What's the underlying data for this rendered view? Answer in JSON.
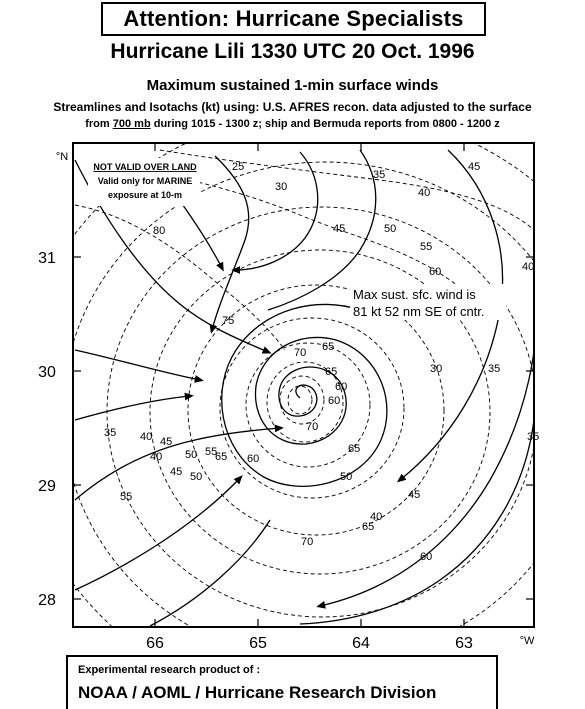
{
  "header": {
    "attention_title": "Attention:  Hurricane Specialists",
    "storm_title": "Hurricane Lili   1330 UTC 20 Oct. 1996",
    "heading": "Maximum sustained 1-min surface winds",
    "desc_line1": "Streamlines and Isotachs (kt) using: U.S. AFRES recon. data adjusted to the surface",
    "desc_line2_from": "from",
    "desc_line2_level": "700 mb",
    "desc_line2_rest": "during 1015 - 1300 z;  ship and Bermuda reports from 0800 - 1200 z"
  },
  "map": {
    "lat_unit": "°N",
    "lon_unit": "°W",
    "lat_ticks": [
      "31",
      "30",
      "29",
      "28"
    ],
    "lon_ticks": [
      "66",
      "65",
      "64",
      "63"
    ],
    "warning_line1": "NOT VALID OVER LAND",
    "warning_line2": "Valid only for MARINE",
    "warning_line3": "exposure at 10-m",
    "max_wind_line1": "Max sust. sfc. wind is",
    "max_wind_line2": "81 kt 52 nm SE of cntr.",
    "isotach_labels": [
      "25",
      "30",
      "35",
      "40",
      "45",
      "50",
      "55",
      "60",
      "65",
      "70",
      "75",
      "80",
      "45",
      "40",
      "35",
      "30",
      "60",
      "65",
      "60",
      "65",
      "70",
      "60",
      "65",
      "55",
      "50",
      "45",
      "40",
      "35",
      "40",
      "45",
      "50",
      "55",
      "60",
      "65",
      "70",
      "50",
      "45",
      "40",
      "35"
    ]
  },
  "footer": {
    "line1": "Experimental research product of :",
    "line2": "NOAA / AOML / Hurricane Research Division"
  }
}
